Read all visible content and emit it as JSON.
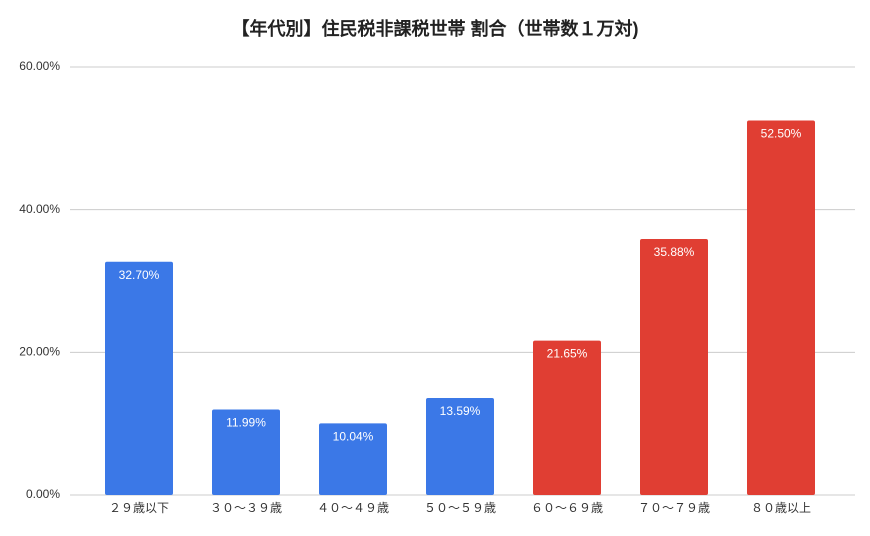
{
  "chart_data": {
    "type": "bar",
    "title": "【年代別】住民税非課税世帯 割合（世帯数１万対)",
    "categories": [
      "２９歳以下",
      "３０〜３９歳",
      "４０〜４９歳",
      "５０〜５９歳",
      "６０〜６９歳",
      "７０〜７９歳",
      "８０歳以上"
    ],
    "values": [
      32.7,
      11.99,
      10.04,
      13.59,
      21.65,
      35.88,
      52.5
    ],
    "value_labels": [
      "32.70%",
      "11.99%",
      "10.04%",
      "13.59%",
      "21.65%",
      "35.88%",
      "52.50%"
    ],
    "colors": [
      "#3b78e7",
      "#3b78e7",
      "#3b78e7",
      "#3b78e7",
      "#e03e33",
      "#e03e33",
      "#e03e33"
    ],
    "ylim": [
      0,
      60
    ],
    "yticks": [
      {
        "value": 0,
        "label": "0.00%"
      },
      {
        "value": 20,
        "label": "20.00%"
      },
      {
        "value": 40,
        "label": "40.00%"
      },
      {
        "value": 60,
        "label": "60.00%"
      }
    ],
    "grid": true
  }
}
